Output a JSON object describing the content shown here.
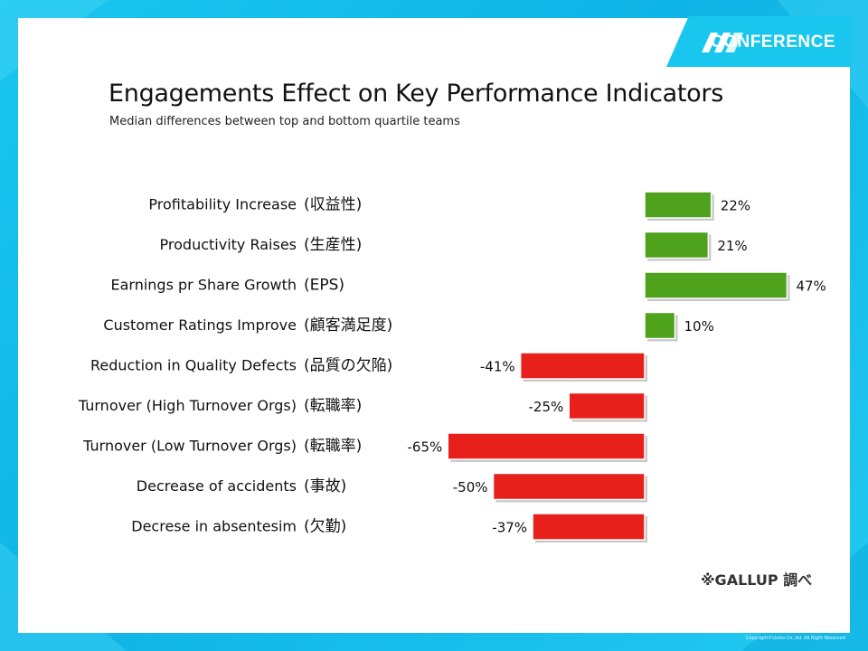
{
  "header": {
    "logo_text": "CONFERENCE",
    "logo_icon": "hr-logo-icon"
  },
  "chart_data": {
    "type": "bar",
    "orientation": "horizontal",
    "title": "Engagements Effect on Key Performance Indicators",
    "subtitle": "Median differences between top and bottom quartile teams",
    "categories": [
      "Profitability Increase",
      "Productivity Raises",
      "Earnings pr Share Growth",
      "Customer Ratings Improve",
      "Reduction in Quality Defects",
      "Turnover (High Turnover Orgs)",
      "Turnover (Low Turnover Orgs)",
      "Decrease of accidents",
      "Decrese in absentesim"
    ],
    "categories_jp": [
      "(収益性)",
      "(生産性)",
      "(EPS)",
      "(顧客満足度)",
      "(品質の欠陥)",
      "(転職率)",
      "(転職率)",
      "(事故)",
      "(欠勤)"
    ],
    "values": [
      22,
      21,
      47,
      10,
      -41,
      -25,
      -65,
      -50,
      -37
    ],
    "value_labels": [
      "22%",
      "21%",
      "47%",
      "10%",
      "-41%",
      "-25%",
      "-65%",
      "-50%",
      "-37%"
    ],
    "colors": {
      "positive": "#4fa21c",
      "negative": "#e8201c"
    },
    "xlabel": "",
    "ylabel": "",
    "grid": false,
    "legend": "none"
  },
  "footer": {
    "source_note": "※GALLUP 調べ",
    "copyright": "Copyright©Ushio Co.,ltd. All Right Reserved"
  }
}
